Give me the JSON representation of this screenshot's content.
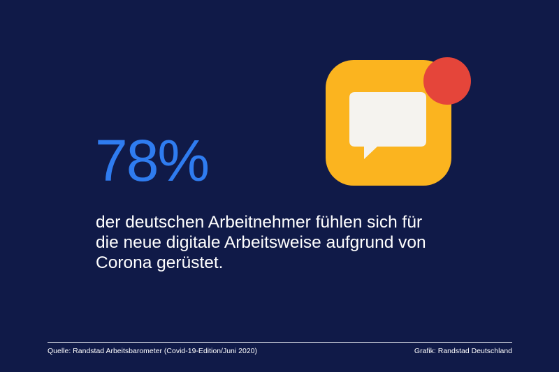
{
  "stat": {
    "value": "78%",
    "color": "#2f7cf0"
  },
  "statement": {
    "lines": [
      "der deutschen Arbeitnehmer fühlen sich für",
      "die neue digitale Arbeitsweise aufgrund von",
      "Corona gerüstet."
    ]
  },
  "icon": {
    "name": "chat-notification-icon",
    "tile_color": "#fbb41f",
    "bubble_color": "#f5f3ef",
    "badge_color": "#e5453a"
  },
  "footer": {
    "source": "Quelle: Randstad Arbeitsbarometer (Covid-19-Edition/Juni 2020)",
    "credit": "Grafik: Randstad Deutschland"
  },
  "colors": {
    "background": "#101a48",
    "text": "#ffffff"
  }
}
